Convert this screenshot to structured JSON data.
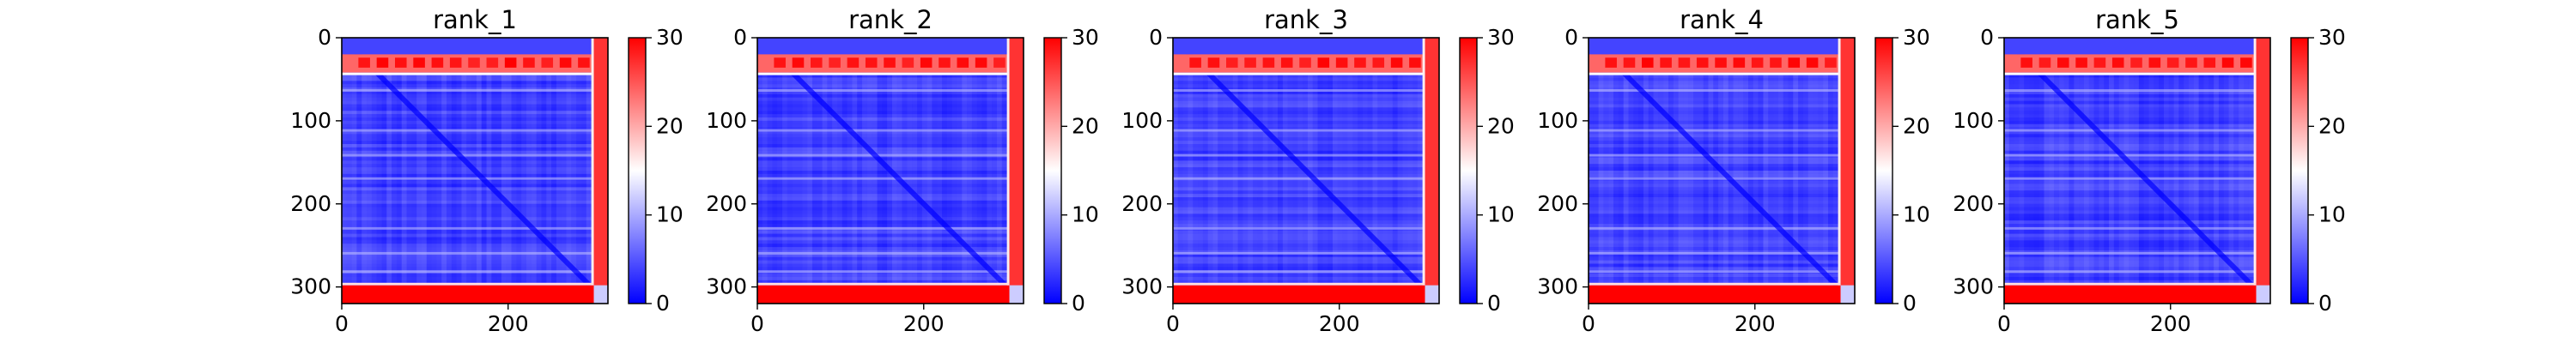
{
  "chart_data": [
    {
      "type": "heatmap",
      "title": "rank_1",
      "x_ticks": [
        0,
        200
      ],
      "y_ticks": [
        0,
        100,
        200,
        300
      ],
      "xlim": [
        0,
        320
      ],
      "ylim": [
        320,
        0
      ],
      "colorbar": {
        "min": 0,
        "max": 30,
        "ticks": [
          0,
          10,
          20,
          30
        ],
        "colormap": "bwr"
      },
      "bands": {
        "top_rows": [
          20,
          42
        ],
        "bottom_rows": [
          298,
          320
        ],
        "right_cols": [
          303,
          320
        ]
      }
    },
    {
      "type": "heatmap",
      "title": "rank_2",
      "x_ticks": [
        0,
        200
      ],
      "y_ticks": [
        0,
        100,
        200,
        300
      ],
      "xlim": [
        0,
        320
      ],
      "ylim": [
        320,
        0
      ],
      "colorbar": {
        "min": 0,
        "max": 30,
        "ticks": [
          0,
          10,
          20,
          30
        ],
        "colormap": "bwr"
      },
      "bands": {
        "top_rows": [
          20,
          42
        ],
        "bottom_rows": [
          298,
          320
        ],
        "right_cols": [
          303,
          320
        ]
      }
    },
    {
      "type": "heatmap",
      "title": "rank_3",
      "x_ticks": [
        0,
        200
      ],
      "y_ticks": [
        0,
        100,
        200,
        300
      ],
      "xlim": [
        0,
        320
      ],
      "ylim": [
        320,
        0
      ],
      "colorbar": {
        "min": 0,
        "max": 30,
        "ticks": [
          0,
          10,
          20,
          30
        ],
        "colormap": "bwr"
      },
      "bands": {
        "top_rows": [
          20,
          42
        ],
        "bottom_rows": [
          298,
          320
        ],
        "right_cols": [
          303,
          320
        ]
      }
    },
    {
      "type": "heatmap",
      "title": "rank_4",
      "x_ticks": [
        0,
        200
      ],
      "y_ticks": [
        0,
        100,
        200,
        300
      ],
      "xlim": [
        0,
        320
      ],
      "ylim": [
        320,
        0
      ],
      "colorbar": {
        "min": 0,
        "max": 30,
        "ticks": [
          0,
          10,
          20,
          30
        ],
        "colormap": "bwr"
      },
      "bands": {
        "top_rows": [
          20,
          42
        ],
        "bottom_rows": [
          298,
          320
        ],
        "right_cols": [
          303,
          320
        ]
      }
    },
    {
      "type": "heatmap",
      "title": "rank_5",
      "x_ticks": [
        0,
        200
      ],
      "y_ticks": [
        0,
        100,
        200,
        300
      ],
      "xlim": [
        0,
        320
      ],
      "ylim": [
        320,
        0
      ],
      "colorbar": {
        "min": 0,
        "max": 30,
        "ticks": [
          0,
          10,
          20,
          30
        ],
        "colormap": "bwr"
      },
      "bands": {
        "top_rows": [
          20,
          42
        ],
        "bottom_rows": [
          298,
          320
        ],
        "right_cols": [
          303,
          320
        ]
      }
    }
  ],
  "colors": {
    "low": "#0000ff",
    "mid": "#ffffff",
    "high": "#ff0000"
  }
}
